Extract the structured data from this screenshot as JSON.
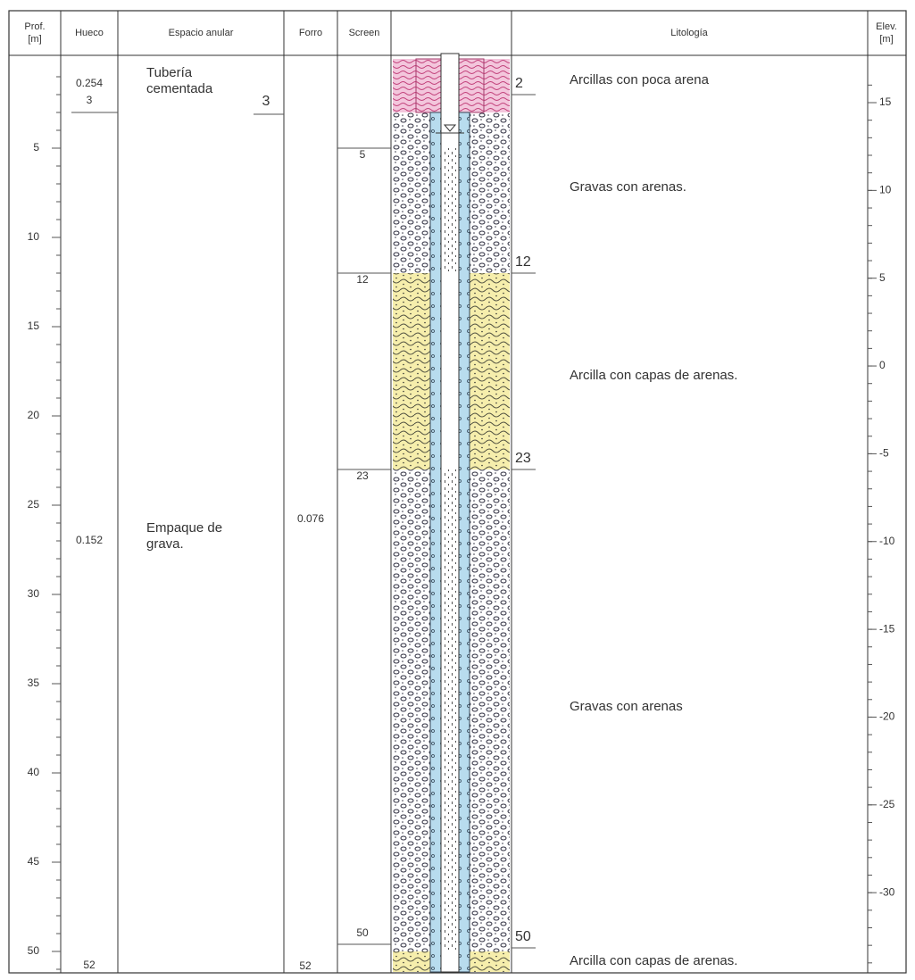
{
  "header": {
    "columns": [
      {
        "label": "Prof.",
        "unit": "[m]"
      },
      {
        "label": "Hueco"
      },
      {
        "label": "Espacio anular"
      },
      {
        "label": "Forro"
      },
      {
        "label": "Screen"
      },
      {
        "label": "Litología"
      },
      {
        "label": "Elev.",
        "unit": "[m]"
      }
    ]
  },
  "depth_axis": {
    "ticks": [
      5,
      10,
      15,
      20,
      25,
      30,
      35,
      40,
      45,
      50
    ]
  },
  "elevation_axis": {
    "ticks": [
      15,
      10,
      5,
      0,
      -5,
      -10,
      -15,
      -20,
      -25,
      -30
    ]
  },
  "hueco": {
    "top_diameter": 0.254,
    "top_depth": 3,
    "bottom_diameter": 0.152,
    "bottom_depth": 52
  },
  "espacio_anular": {
    "top": {
      "lines": [
        "Tubería",
        "cementada"
      ],
      "depth": 3
    },
    "bottom": {
      "lines": [
        "Empaque de",
        "grava."
      ]
    }
  },
  "forro": {
    "diameter": 0.076,
    "depth": 52
  },
  "screen": {
    "depths": [
      5,
      12,
      23,
      50
    ]
  },
  "boundaries": [
    2,
    12,
    23,
    50
  ],
  "lithology": [
    "Arcillas con poca arena",
    "Gravas con arenas.",
    "Arcilla con capas de arenas.",
    "Gravas con arenas",
    "Arcilla con capas de arenas."
  ]
}
